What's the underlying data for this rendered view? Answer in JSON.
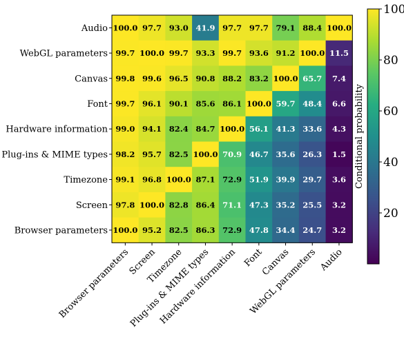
{
  "chart_data": {
    "type": "heatmap",
    "row_labels": [
      "Audio",
      "WebGL parameters",
      "Canvas",
      "Font",
      "Hardware information",
      "Plug-ins & MIME types",
      "Timezone",
      "Screen",
      "Browser parameters"
    ],
    "col_labels": [
      "Browser parameters",
      "Screen",
      "Timezone",
      "Plug-ins & MIME types",
      "Hardware information",
      "Font",
      "Canvas",
      "WebGL parameters",
      "Audio"
    ],
    "values": [
      [
        100.0,
        97.7,
        93.0,
        41.9,
        97.7,
        97.7,
        79.1,
        88.4,
        100.0
      ],
      [
        99.7,
        100.0,
        99.7,
        93.3,
        99.7,
        93.6,
        91.2,
        100.0,
        11.5
      ],
      [
        99.8,
        99.6,
        96.5,
        90.8,
        88.2,
        83.2,
        100.0,
        65.7,
        7.4
      ],
      [
        99.7,
        96.1,
        90.1,
        85.6,
        86.1,
        100.0,
        59.7,
        48.4,
        6.6
      ],
      [
        99.0,
        94.1,
        82.4,
        84.7,
        100.0,
        56.1,
        41.3,
        33.6,
        4.3
      ],
      [
        98.2,
        95.7,
        82.5,
        100.0,
        70.9,
        46.7,
        35.6,
        26.3,
        1.5
      ],
      [
        99.1,
        96.8,
        100.0,
        87.1,
        72.9,
        51.9,
        39.9,
        29.7,
        3.6
      ],
      [
        97.8,
        100.0,
        82.8,
        86.4,
        71.1,
        47.3,
        35.2,
        25.5,
        3.2
      ],
      [
        100.0,
        95.2,
        82.5,
        86.3,
        72.9,
        47.8,
        34.4,
        24.7,
        3.2
      ]
    ],
    "value_labels": [
      [
        "100.0",
        "97.7",
        "93.0",
        "41.9",
        "97.7",
        "97.7",
        "79.1",
        "88.4",
        "100.0"
      ],
      [
        "99.7",
        "100.0",
        "99.7",
        "93.3",
        "99.7",
        "93.6",
        "91.2",
        "100.0",
        "11.5"
      ],
      [
        "99.8",
        "99.6",
        "96.5",
        "90.8",
        "88.2",
        "83.2",
        "100.0",
        "65.7",
        "7.4"
      ],
      [
        "99.7",
        "96.1",
        "90.1",
        "85.6",
        "86.1",
        "100.0",
        "59.7",
        "48.4",
        "6.6"
      ],
      [
        "99.0",
        "94.1",
        "82.4",
        "84.7",
        "100.0",
        "56.1",
        "41.3",
        "33.6",
        "4.3"
      ],
      [
        "98.2",
        "95.7",
        "82.5",
        "100.0",
        "70.9",
        "46.7",
        "35.6",
        "26.3",
        "1.5"
      ],
      [
        "99.1",
        "96.8",
        "100.0",
        "87.1",
        "72.9",
        "51.9",
        "39.9",
        "29.7",
        "3.6"
      ],
      [
        "97.8",
        "100.0",
        "82.8",
        "86.4",
        "71.1",
        "47.3",
        "35.2",
        "25.5",
        "3.2"
      ],
      [
        "100.0",
        "95.2",
        "82.5",
        "86.3",
        "72.9",
        "47.8",
        "34.4",
        "24.7",
        "3.2"
      ]
    ],
    "colormap": "viridis",
    "vmin": 0,
    "vmax": 100,
    "colorbar": {
      "label": "Conditional probability",
      "ticks": [
        20,
        40,
        60,
        80,
        100
      ],
      "tick_labels": [
        "20",
        "40",
        "60",
        "80",
        "100"
      ]
    },
    "text_color_dark_bg": "#ffffff",
    "text_color_light_bg": "#000000"
  }
}
